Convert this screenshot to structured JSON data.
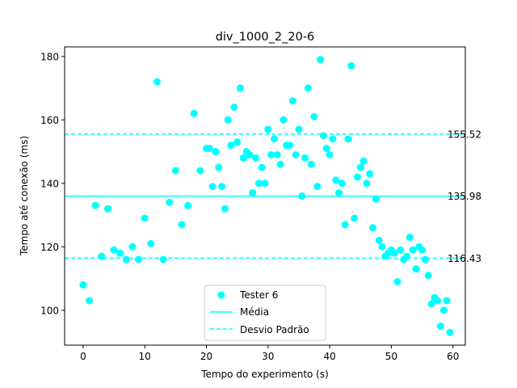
{
  "chart_data": {
    "type": "scatter",
    "title": "div_1000_2_20-6",
    "xlabel": "Tempo do experimento (s)",
    "ylabel": "Tempo até conexão (ms)",
    "xlim": [
      -3,
      62
    ],
    "ylim": [
      89,
      183
    ],
    "xticks": [
      0,
      10,
      20,
      30,
      40,
      50,
      60
    ],
    "yticks": [
      100,
      120,
      140,
      160,
      180
    ],
    "grid": false,
    "legend_position": "lower-center",
    "colors": {
      "series": "#00ffff",
      "axis": "#000000"
    },
    "series": [
      {
        "name": "Tester 6",
        "kind": "scatter",
        "x": [
          0,
          1,
          2,
          3,
          4,
          5,
          6,
          7,
          8,
          9,
          10,
          11,
          12,
          13,
          14,
          15,
          16,
          17,
          18,
          19,
          20,
          20.5,
          21,
          21.5,
          22,
          22.5,
          23,
          23.5,
          24,
          24.5,
          25,
          25.5,
          26,
          26.5,
          27,
          27.5,
          28,
          28.5,
          29,
          29.5,
          30,
          30.5,
          31,
          31.5,
          32,
          32.5,
          33,
          33.5,
          34,
          34.5,
          35,
          35.5,
          36,
          36.5,
          37,
          37.5,
          38,
          38.5,
          39,
          39.5,
          40,
          40.5,
          41,
          41.5,
          42,
          42.5,
          43,
          43.5,
          44,
          44.5,
          45,
          45.5,
          46,
          46.5,
          47,
          47.5,
          48,
          48.5,
          49,
          49.5,
          50,
          50.5,
          51,
          51.5,
          52,
          52.5,
          53,
          53.5,
          54,
          54.5,
          55,
          55.5,
          56,
          56.5,
          57,
          57.5,
          58,
          58.5,
          59,
          59.5
        ],
        "y": [
          108,
          103,
          133,
          117,
          132,
          119,
          118,
          116,
          120,
          116,
          129,
          121,
          172,
          116,
          134,
          144,
          127,
          133,
          162,
          144,
          151,
          151,
          139,
          150,
          145,
          139,
          132,
          160,
          152,
          164,
          153,
          170,
          148,
          150,
          149,
          137,
          148,
          140,
          145,
          140,
          157,
          149,
          154,
          149,
          146,
          160,
          152,
          152,
          166,
          149,
          157,
          136,
          148,
          170,
          146,
          161,
          139,
          179,
          155,
          151,
          149,
          154,
          141,
          137,
          140,
          127,
          154,
          177,
          129,
          142,
          145,
          147,
          140,
          143,
          126,
          135,
          122,
          120,
          117,
          118,
          119,
          118,
          109,
          119,
          116,
          117,
          123,
          119,
          113,
          120,
          119,
          116,
          111,
          102,
          104,
          103,
          95,
          100,
          103,
          93
        ]
      },
      {
        "name": "Média",
        "kind": "hline",
        "y": 135.98
      },
      {
        "name": "Desvio Padrão",
        "kind": "hline-dashed",
        "y": [
          155.52,
          116.43
        ]
      }
    ],
    "annotations": [
      {
        "text": "155.52",
        "y": 155.52
      },
      {
        "text": "135.98",
        "y": 135.98
      },
      {
        "text": "116.43",
        "y": 116.43
      }
    ]
  }
}
